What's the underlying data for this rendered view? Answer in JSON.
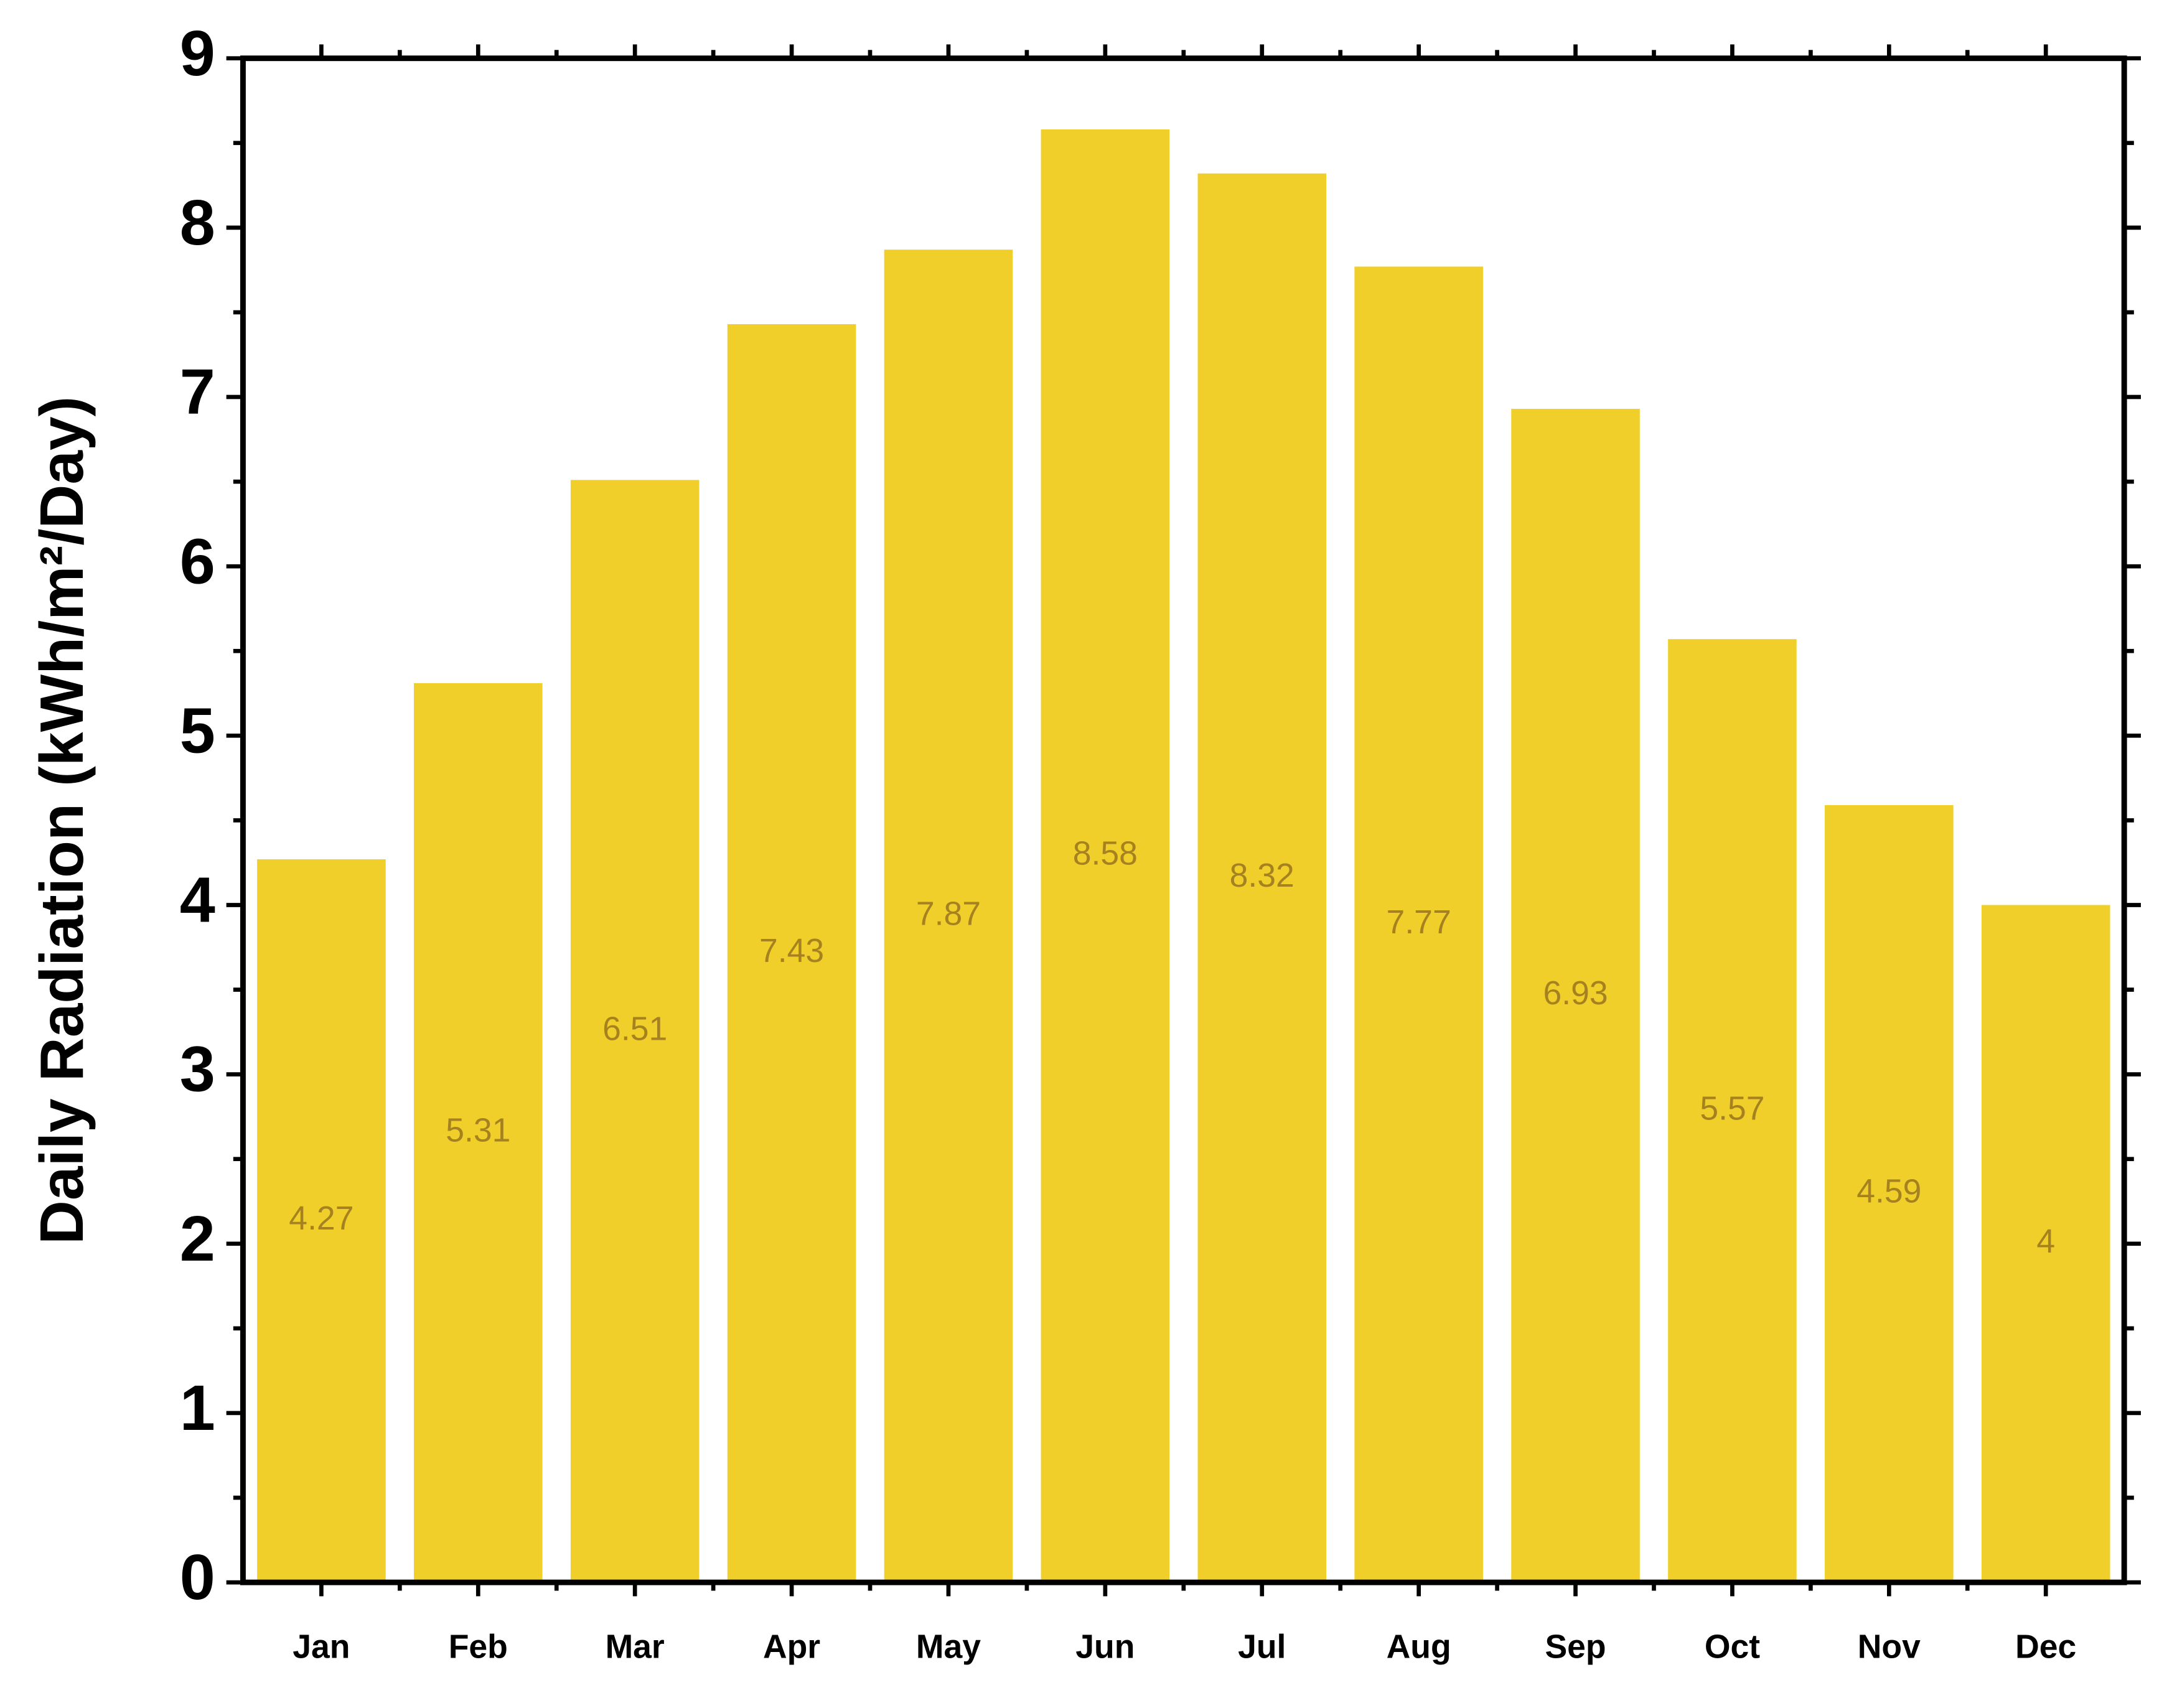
{
  "chart_data": {
    "type": "bar",
    "y_label": "Daily Radiation (kWh/m²/Day)",
    "categories": [
      "Jan",
      "Feb",
      "Mar",
      "Apr",
      "May",
      "Jun",
      "Jul",
      "Aug",
      "Sep",
      "Oct",
      "Nov",
      "Dec"
    ],
    "values": [
      4.27,
      5.31,
      6.51,
      7.43,
      7.87,
      8.58,
      8.32,
      7.77,
      6.93,
      5.57,
      4.59,
      4
    ],
    "color": "#f0cf2b",
    "value_label_color": "#a5821f",
    "ylim": [
      0,
      9
    ],
    "yticks": [
      0,
      1,
      2,
      3,
      4,
      5,
      6,
      7,
      8,
      9
    ],
    "grid": false
  }
}
